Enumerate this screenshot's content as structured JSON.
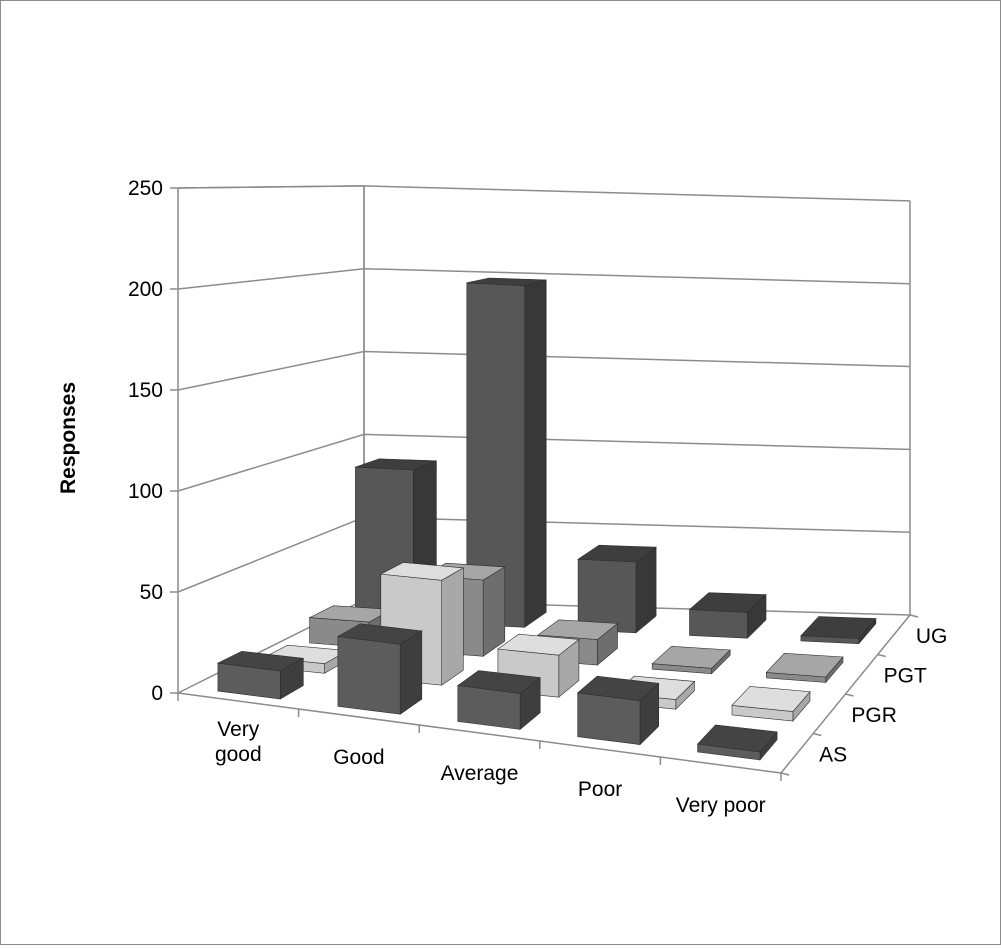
{
  "chart_data": {
    "type": "bar",
    "subtype": "3d-column",
    "title": "",
    "ylabel": "Responses",
    "xlabel": "",
    "ylim": [
      0,
      250
    ],
    "yticks": [
      "0",
      "50",
      "100",
      "150",
      "200",
      "250"
    ],
    "categories": [
      [
        "Very",
        "good"
      ],
      [
        "Good"
      ],
      [
        "Average"
      ],
      [
        "Poor"
      ],
      [
        "Very poor"
      ]
    ],
    "series": [
      {
        "name": "AS",
        "values": [
          14,
          35,
          18,
          22,
          4
        ]
      },
      {
        "name": "PGR",
        "values": [
          5,
          55,
          22,
          5,
          5
        ]
      },
      {
        "name": "PGT",
        "values": [
          14,
          42,
          14,
          3,
          3
        ]
      },
      {
        "name": "UG",
        "values": [
          88,
          198,
          41,
          15,
          3
        ]
      }
    ],
    "series_colors": {
      "AS": {
        "front": "#5c5c5c",
        "top": "#444444",
        "side": "#3e3e3e"
      },
      "PGR": {
        "front": "#c9c9c9",
        "top": "#dedede",
        "side": "#a8a8a8"
      },
      "PGT": {
        "front": "#8a8a8a",
        "top": "#a6a6a6",
        "side": "#6e6e6e"
      },
      "UG": {
        "front": "#575757",
        "top": "#3e3e3e",
        "side": "#383838"
      }
    },
    "grid": true,
    "legend": "depth-axis"
  }
}
